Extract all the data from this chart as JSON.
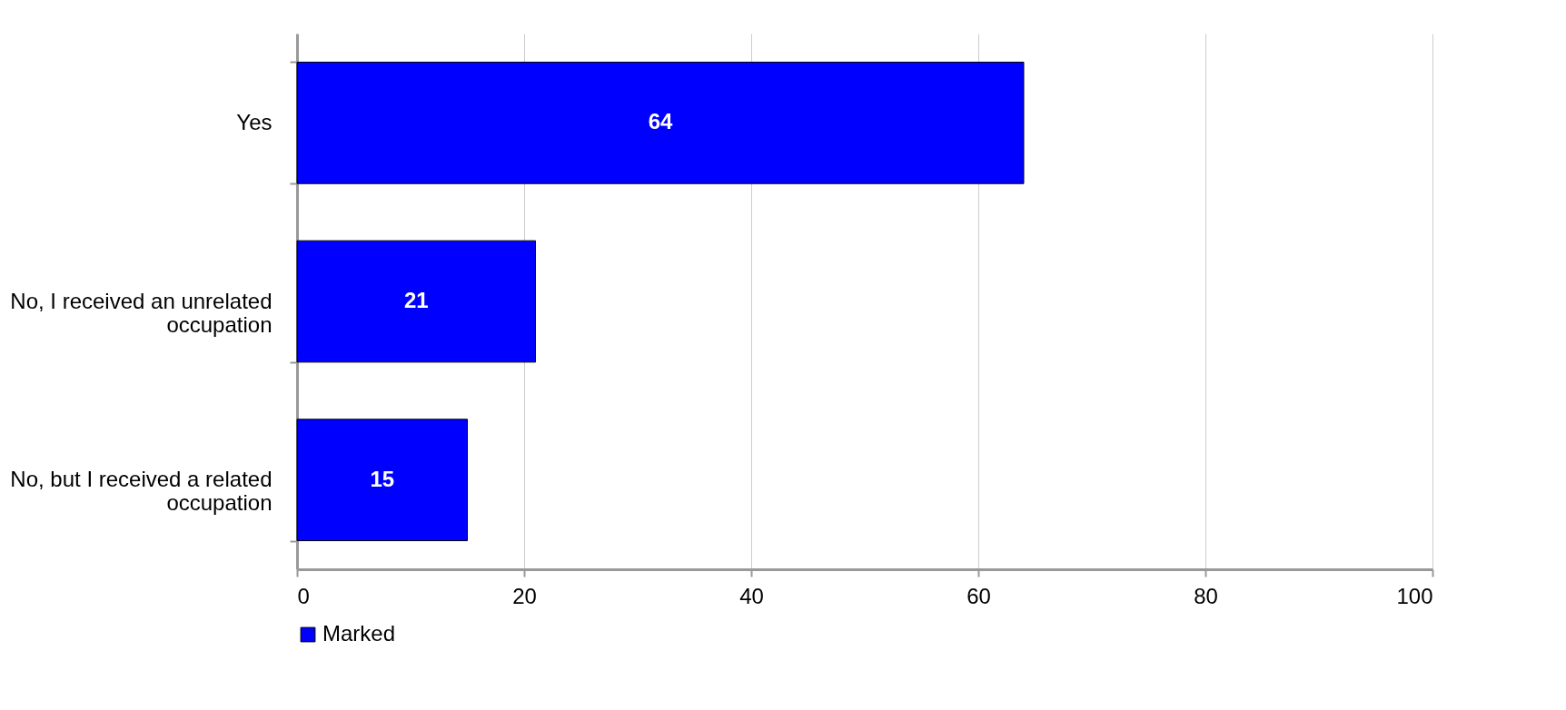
{
  "chart_data": {
    "type": "bar",
    "orientation": "horizontal",
    "categories": [
      "Yes",
      "No, I received an unrelated occupation",
      "No, but I received a related occupation"
    ],
    "series": [
      {
        "name": "Marked",
        "color": "#0000ff",
        "values": [
          64,
          21,
          15
        ]
      }
    ],
    "xlim": [
      0,
      100
    ],
    "xticks": [
      0,
      20,
      40,
      60,
      80,
      100
    ],
    "grid": "x",
    "legend": "bottom",
    "data_labels": true
  }
}
